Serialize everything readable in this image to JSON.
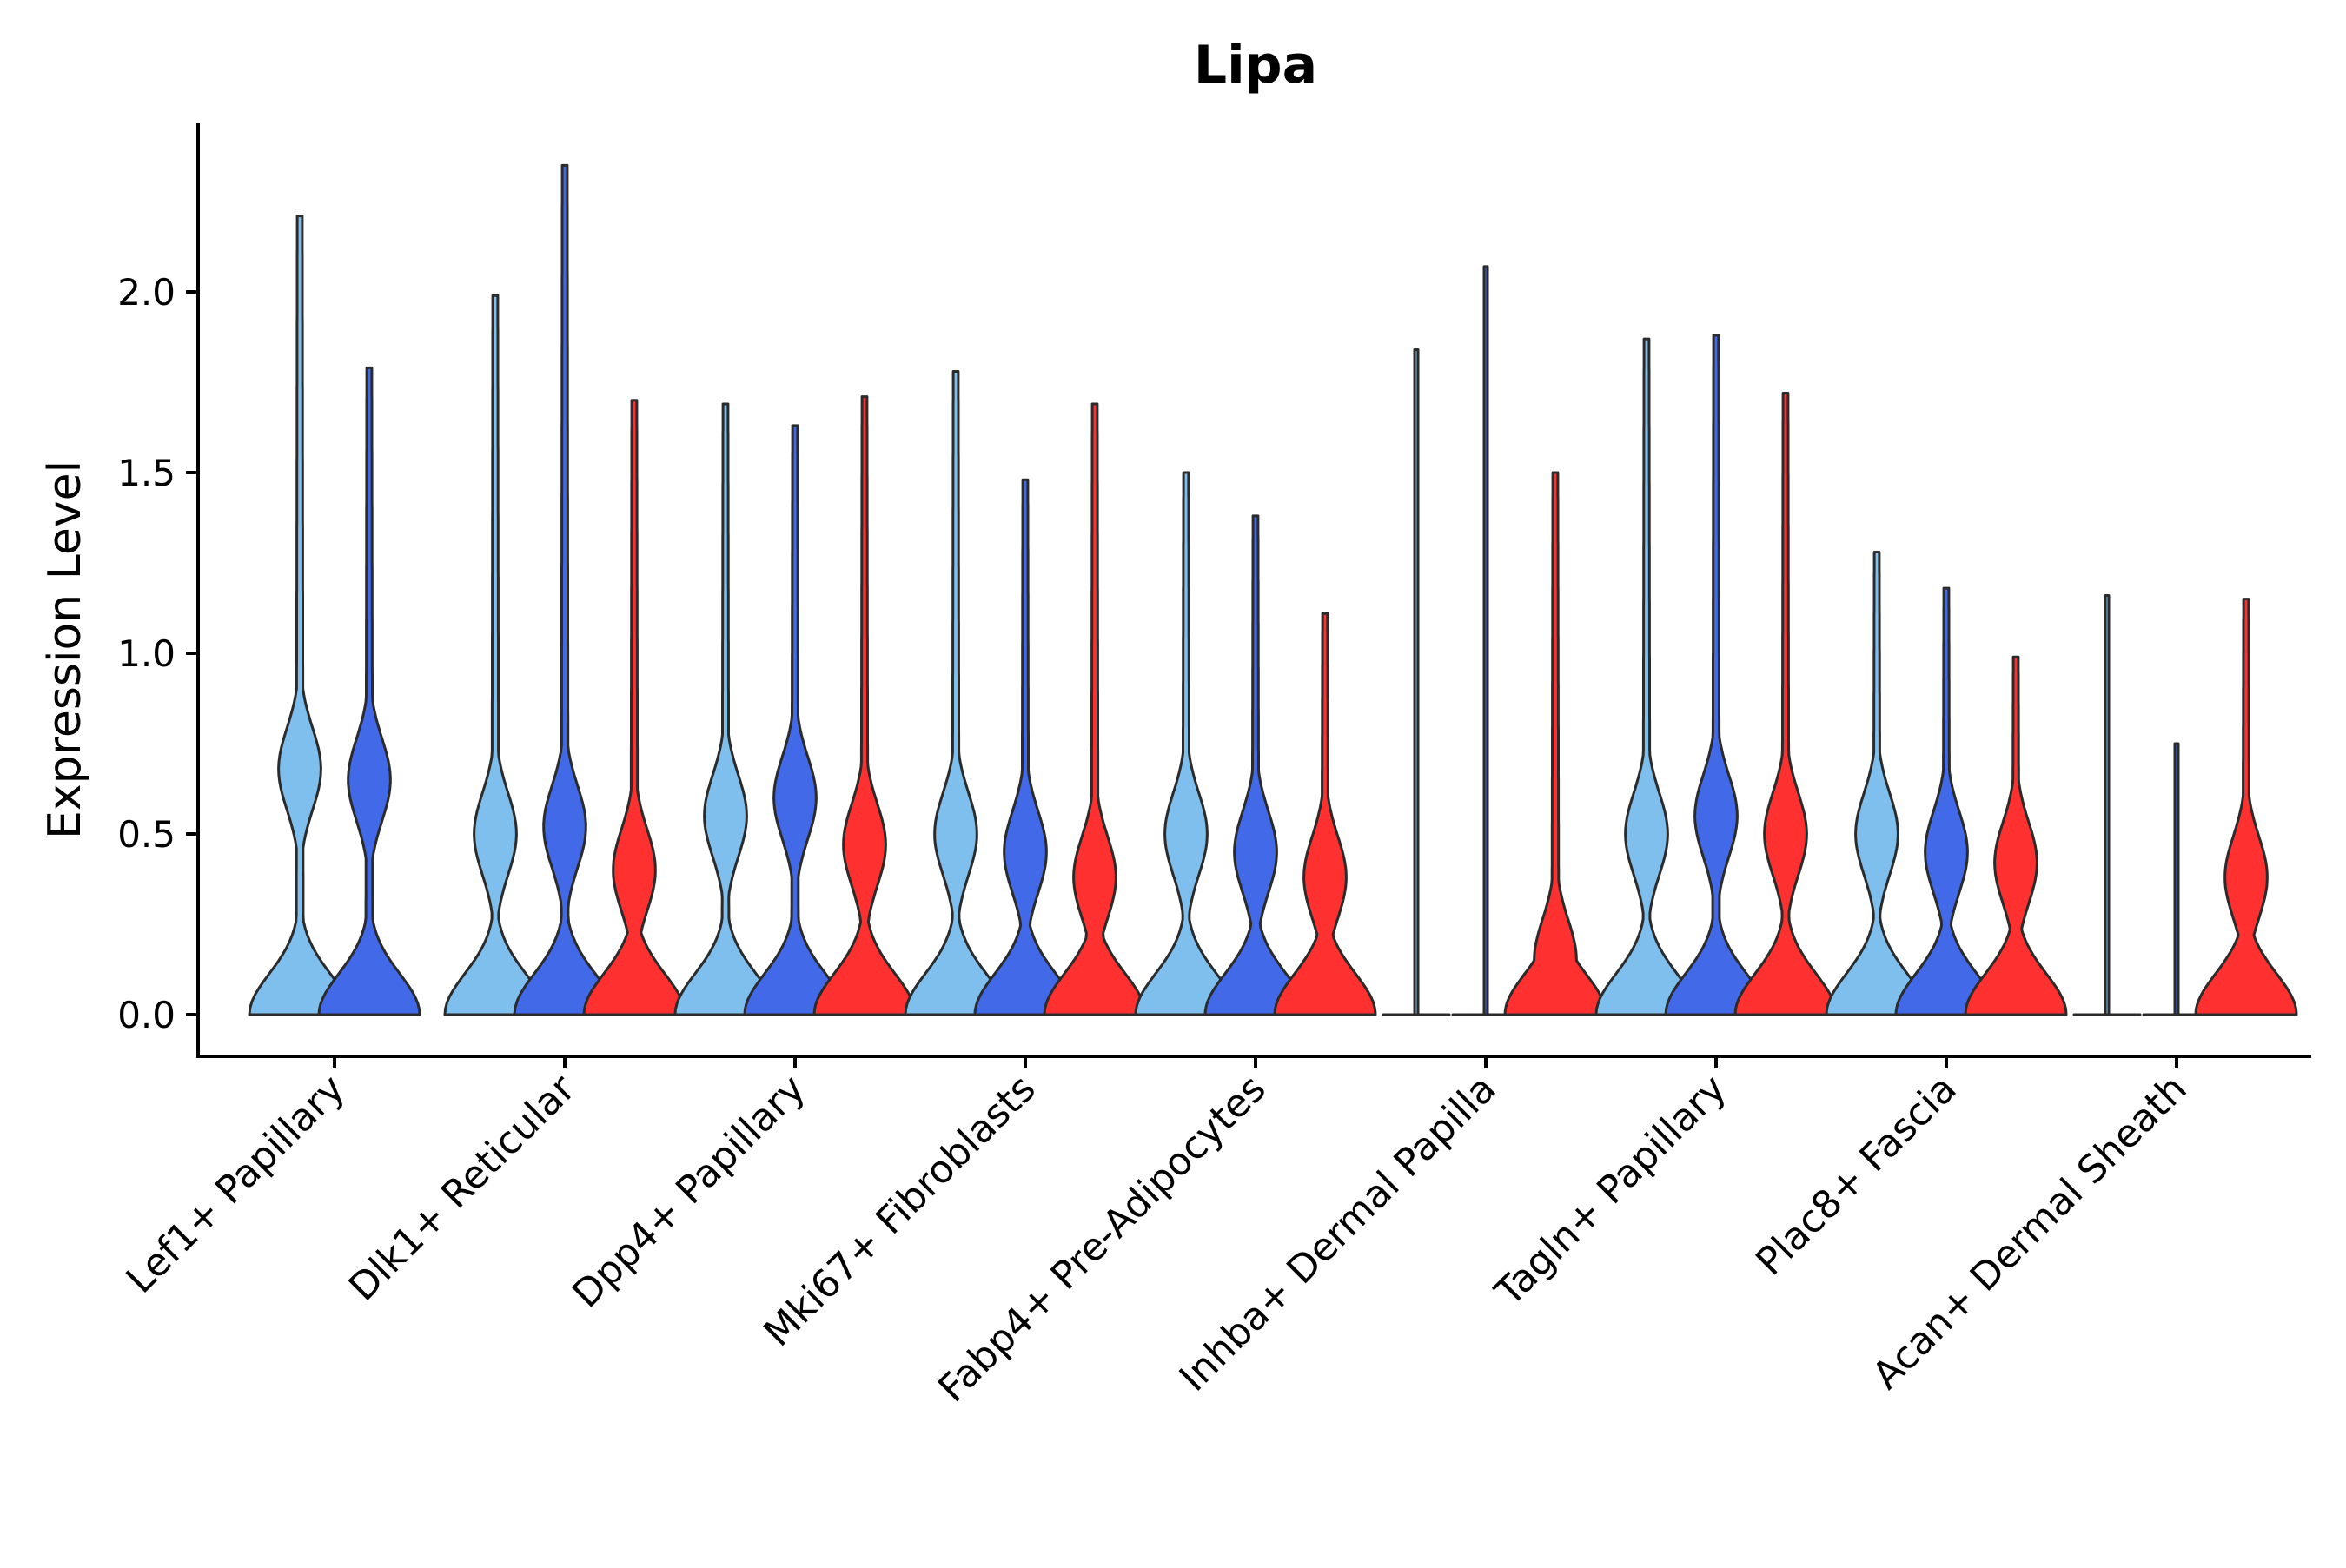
{
  "chart_data": {
    "type": "violin",
    "title": "Lipa",
    "xlabel": "",
    "ylabel": "Expression Level",
    "ylim": [
      -0.12,
      2.45
    ],
    "yticks": [
      0.0,
      0.5,
      1.0,
      1.5,
      2.0
    ],
    "ytick_labels": [
      "0.0",
      "0.5",
      "1.0",
      "1.5",
      "2.0"
    ],
    "grid": false,
    "legend": "none",
    "series_colors": [
      "#7fbfee",
      "#4169e8",
      "#ff3030"
    ],
    "categories": [
      "Lef1+ Papillary",
      "Dlk1+ Reticular",
      "Dpp4+ Papillary",
      "Mki67+ Fibroblasts",
      "Fabp4+ Pre-Adipocytes",
      "Inhba+ Dermal Papilla",
      "Tagln+ Papillary",
      "Plac8+ Fascia",
      "Acan+ Dermal Sheath"
    ],
    "groups": [
      {
        "category": "Lef1+ Papillary",
        "violins": [
          {
            "series": 0,
            "max": 2.21,
            "modes": [
              0.68
            ]
          },
          {
            "series": 1,
            "max": 1.79,
            "modes": [
              0.65
            ]
          }
        ]
      },
      {
        "category": "Dlk1+ Reticular",
        "violins": [
          {
            "series": 0,
            "max": 1.99,
            "modes": [
              0.5
            ]
          },
          {
            "series": 1,
            "max": 2.35,
            "modes": [
              0.52
            ]
          },
          {
            "series": 2,
            "max": 1.7,
            "modes": [
              0.4
            ]
          }
        ]
      },
      {
        "category": "Dpp4+ Papillary",
        "violins": [
          {
            "series": 0,
            "max": 1.69,
            "modes": [
              0.55
            ]
          },
          {
            "series": 1,
            "max": 1.63,
            "modes": [
              0.6
            ]
          },
          {
            "series": 2,
            "max": 1.71,
            "modes": [
              0.47
            ]
          }
        ]
      },
      {
        "category": "Mki67+ Fibroblasts",
        "violins": [
          {
            "series": 0,
            "max": 1.78,
            "modes": [
              0.5
            ]
          },
          {
            "series": 1,
            "max": 1.48,
            "modes": [
              0.45
            ]
          },
          {
            "series": 2,
            "max": 1.69,
            "modes": [
              0.38
            ]
          }
        ]
      },
      {
        "category": "Fabp4+ Pre-Adipocytes",
        "violins": [
          {
            "series": 0,
            "max": 1.5,
            "modes": [
              0.5
            ]
          },
          {
            "series": 1,
            "max": 1.38,
            "modes": [
              0.45
            ]
          },
          {
            "series": 2,
            "max": 1.11,
            "modes": [
              0.38
            ]
          }
        ]
      },
      {
        "category": "Inhba+ Dermal Papilla",
        "violins": [
          {
            "series": 0,
            "max": 1.84,
            "modes": []
          },
          {
            "series": 1,
            "max": 2.07,
            "modes": []
          },
          {
            "series": 2,
            "max": 1.5,
            "modes": [
              0.15
            ]
          }
        ]
      },
      {
        "category": "Tagln+ Papillary",
        "violins": [
          {
            "series": 0,
            "max": 1.87,
            "modes": [
              0.5
            ]
          },
          {
            "series": 1,
            "max": 1.88,
            "modes": [
              0.55
            ]
          },
          {
            "series": 2,
            "max": 1.72,
            "modes": [
              0.5
            ]
          }
        ]
      },
      {
        "category": "Plac8+ Fascia",
        "violins": [
          {
            "series": 0,
            "max": 1.28,
            "modes": [
              0.5
            ]
          },
          {
            "series": 1,
            "max": 1.18,
            "modes": [
              0.45
            ]
          },
          {
            "series": 2,
            "max": 0.99,
            "modes": [
              0.42
            ]
          }
        ]
      },
      {
        "category": "Acan+ Dermal Sheath",
        "violins": [
          {
            "series": 0,
            "max": 1.16,
            "modes": []
          },
          {
            "series": 1,
            "max": 0.75,
            "modes": []
          },
          {
            "series": 2,
            "max": 1.15,
            "modes": [
              0.38
            ]
          }
        ]
      }
    ]
  }
}
